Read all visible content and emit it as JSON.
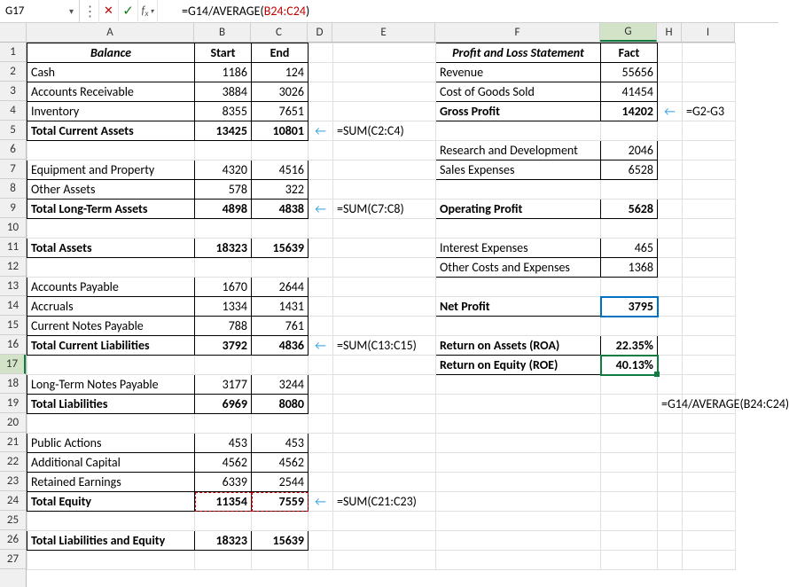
{
  "formula_bar": {
    "cell_ref": "G17",
    "formula_prefix": "=G14/",
    "formula_func": "AVERAGE",
    "formula_open": "(",
    "formula_range": "B24:C24",
    "formula_close": ")"
  },
  "columns": [
    {
      "letter": "A",
      "width": 189
    },
    {
      "letter": "B",
      "width": 64
    },
    {
      "letter": "C",
      "width": 64
    },
    {
      "letter": "D",
      "width": 28
    },
    {
      "letter": "E",
      "width": 116
    },
    {
      "letter": "F",
      "width": 186
    },
    {
      "letter": "G",
      "width": 64
    },
    {
      "letter": "H",
      "width": 28
    },
    {
      "letter": "I",
      "width": 60
    }
  ],
  "balance": {
    "header": {
      "title": "Balance",
      "start": "Start",
      "end": "End"
    },
    "rows": [
      {
        "label": "Cash",
        "start": "1186",
        "end": "124"
      },
      {
        "label": "Accounts Receivable",
        "start": "3884",
        "end": "3026"
      },
      {
        "label": "Inventory",
        "start": "8355",
        "end": "7651"
      },
      {
        "label": "Total Current Assets",
        "start": "13425",
        "end": "10801",
        "bold": true,
        "formula": "=SUM(C2:C4)"
      },
      {
        "blank": true
      },
      {
        "label": "Equipment and Property",
        "start": "4320",
        "end": "4516"
      },
      {
        "label": "Other Assets",
        "start": "578",
        "end": "322"
      },
      {
        "label": "Total Long-Term Assets",
        "start": "4898",
        "end": "4838",
        "bold": true,
        "formula": "=SUM(C7:C8)"
      },
      {
        "blank": true
      },
      {
        "label": "Total Assets",
        "start": "18323",
        "end": "15639",
        "bold": true
      },
      {
        "blank": true
      },
      {
        "label": "Accounts Payable",
        "start": "1670",
        "end": "2644"
      },
      {
        "label": "Accruals",
        "start": "1334",
        "end": "1431"
      },
      {
        "label": "Current Notes Payable",
        "start": "788",
        "end": "761"
      },
      {
        "label": "Total Current Liabilities",
        "start": "3792",
        "end": "4836",
        "bold": true,
        "formula": "=SUM(C13:C15)"
      },
      {
        "blank": true
      },
      {
        "label": "Long-Term Notes Payable",
        "start": "3177",
        "end": "3244"
      },
      {
        "label": "Total Liabilities",
        "start": "6969",
        "end": "8080",
        "bold": true
      },
      {
        "blank": true
      },
      {
        "label": "Public Actions",
        "start": "453",
        "end": "453"
      },
      {
        "label": "Additional Capital",
        "start": "4562",
        "end": "4562"
      },
      {
        "label": "Retained Earnings",
        "start": "6339",
        "end": "2544"
      },
      {
        "label": "Total Equity",
        "start": "11354",
        "end": "7559",
        "bold": true,
        "formula": "=SUM(C21:C23)",
        "marquee": true
      },
      {
        "blank": true
      },
      {
        "label": "Total Liabilities and Equity",
        "start": "18323",
        "end": "15639",
        "bold": true
      }
    ]
  },
  "pnl": {
    "header": {
      "title": "Profit and Loss Statement",
      "fact": "Fact"
    },
    "rows": [
      {
        "label": "Revenue",
        "val": "55656"
      },
      {
        "label": "Cost of Goods Sold",
        "val": "41454"
      },
      {
        "label": "Gross Profit",
        "val": "14202",
        "bold": true,
        "formula": "=G2-G3"
      },
      {
        "blank": true
      },
      {
        "label": "Research and Development",
        "val": "2046"
      },
      {
        "label": "Sales Expenses",
        "val": "6528"
      },
      {
        "blank": true
      },
      {
        "label": "Operating Profit",
        "val": "5628",
        "bold": true
      },
      {
        "blank": true
      },
      {
        "label": "Interest Expenses",
        "val": "465"
      },
      {
        "label": "Other Costs and Expenses",
        "val": "1368"
      },
      {
        "blank": true
      },
      {
        "label": "Net Profit",
        "val": "3795",
        "bold": true,
        "sel": true
      },
      {
        "blank": true
      },
      {
        "label": "Return on Assets (ROA)",
        "val": "22.35%",
        "bold": true
      },
      {
        "label": "Return on Equity (ROE)",
        "val": "40.13%",
        "bold": true,
        "active": true
      }
    ],
    "roe_formula": "=G14/AVERAGE(B24:C24)"
  },
  "arrow": "←",
  "arrow_r": "←"
}
